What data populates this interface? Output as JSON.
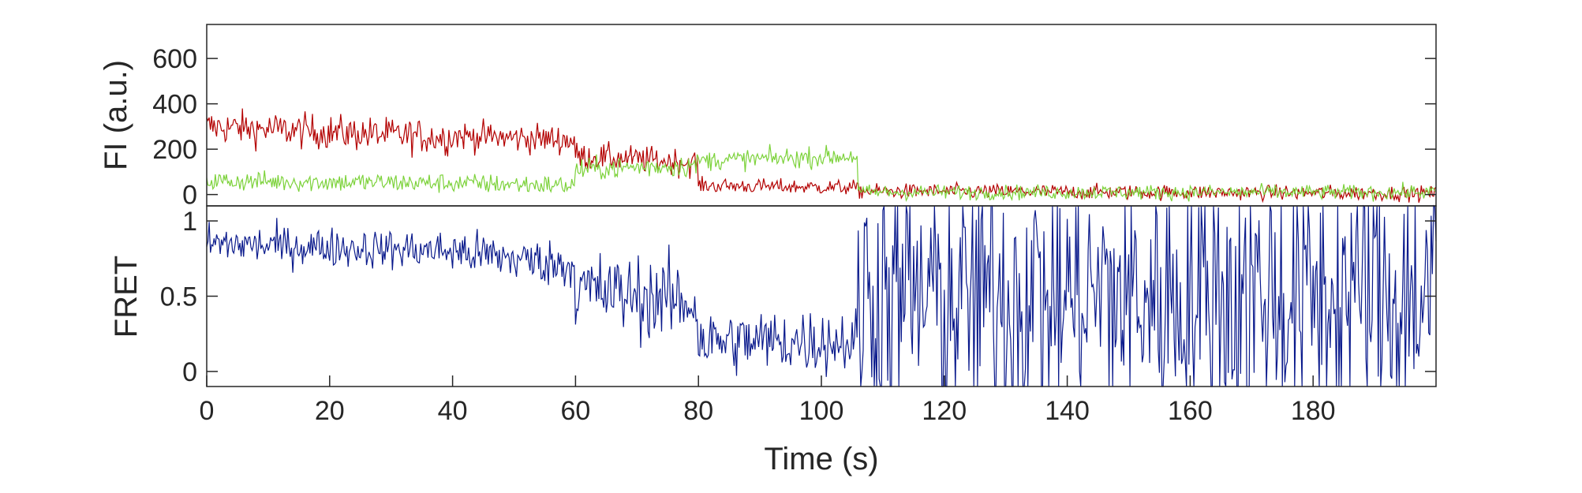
{
  "chart_data": [
    {
      "type": "line",
      "panel": "top",
      "ylabel": "FI (a.u.)",
      "xlim": [
        0,
        200
      ],
      "ylim": [
        -50,
        750
      ],
      "yticks": [
        0,
        200,
        400,
        600
      ],
      "ytick_labels": [
        "0",
        "200",
        "400",
        "600"
      ],
      "grid": false,
      "series": [
        {
          "color": "#b30000",
          "segments": [
            {
              "x": [
                0,
                40
              ],
              "y0": 300,
              "y1": 250,
              "noise": 70
            },
            {
              "x": [
                40,
                60
              ],
              "y0": 260,
              "y1": 240,
              "noise": 60
            },
            {
              "x": [
                60,
                80
              ],
              "y0": 170,
              "y1": 140,
              "noise": 55
            },
            {
              "x": [
                80,
                106
              ],
              "y0": 40,
              "y1": 30,
              "noise": 30
            },
            {
              "x": [
                106,
                200
              ],
              "y0": 15,
              "y1": 5,
              "noise": 30
            }
          ]
        },
        {
          "color": "#7cd23a",
          "segments": [
            {
              "x": [
                0,
                40
              ],
              "y0": 60,
              "y1": 50,
              "noise": 40
            },
            {
              "x": [
                40,
                60
              ],
              "y0": 50,
              "y1": 40,
              "noise": 40
            },
            {
              "x": [
                60,
                80
              ],
              "y0": 110,
              "y1": 130,
              "noise": 45
            },
            {
              "x": [
                80,
                106
              ],
              "y0": 150,
              "y1": 170,
              "noise": 40
            },
            {
              "x": [
                106,
                200
              ],
              "y0": 10,
              "y1": 10,
              "noise": 30
            }
          ]
        }
      ]
    },
    {
      "type": "line",
      "panel": "bottom",
      "ylabel": "FRET",
      "xlabel": "Time (s)",
      "xlim": [
        0,
        200
      ],
      "ylim": [
        -0.1,
        1.1
      ],
      "xticks": [
        0,
        20,
        40,
        60,
        80,
        100,
        120,
        140,
        160,
        180
      ],
      "xtick_labels": [
        "0",
        "20",
        "40",
        "60",
        "80",
        "100",
        "120",
        "140",
        "160",
        "180"
      ],
      "yticks": [
        0,
        0.5,
        1
      ],
      "ytick_labels": [
        "0",
        "0.5",
        "1"
      ],
      "grid": false,
      "series": [
        {
          "color": "#0a1a8c",
          "segments": [
            {
              "x": [
                0,
                40
              ],
              "y0": 0.85,
              "y1": 0.8,
              "noise": 0.12
            },
            {
              "x": [
                40,
                60
              ],
              "y0": 0.8,
              "y1": 0.7,
              "noise": 0.14
            },
            {
              "x": [
                60,
                80
              ],
              "y0": 0.55,
              "y1": 0.45,
              "noise": 0.25
            },
            {
              "x": [
                80,
                106
              ],
              "y0": 0.2,
              "y1": 0.2,
              "noise": 0.2
            },
            {
              "x": [
                106,
                200
              ],
              "y0": 0.5,
              "y1": 0.5,
              "noise": 0.9
            }
          ]
        }
      ]
    }
  ]
}
